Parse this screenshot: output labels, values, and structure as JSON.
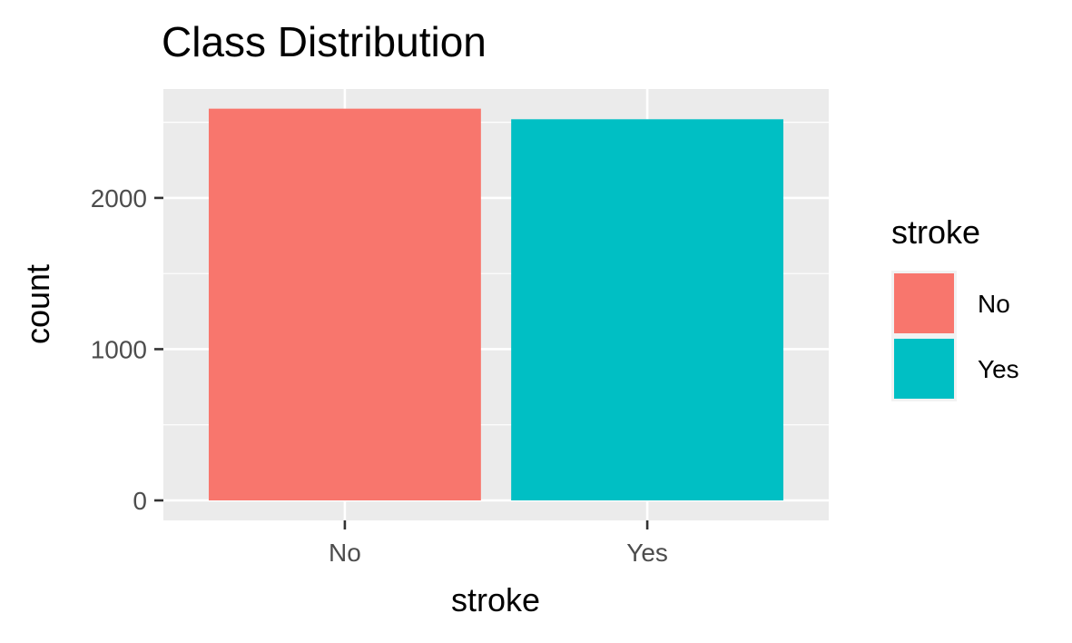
{
  "chart_data": {
    "type": "bar",
    "title": "Class Distribution",
    "xlabel": "stroke",
    "ylabel": "count",
    "categories": [
      "No",
      "Yes"
    ],
    "values": [
      2590,
      2520
    ],
    "colors": [
      "#F8766D",
      "#00BFC4"
    ],
    "ylim": [
      0,
      2720
    ],
    "yticks": [
      0,
      1000,
      2000
    ],
    "ytick_labels": [
      "0",
      "1000",
      "2000"
    ],
    "grid": true,
    "panel_background": "#EBEBEB",
    "legend": {
      "title": "stroke",
      "placement": "right",
      "entries": [
        "No",
        "Yes"
      ]
    }
  }
}
